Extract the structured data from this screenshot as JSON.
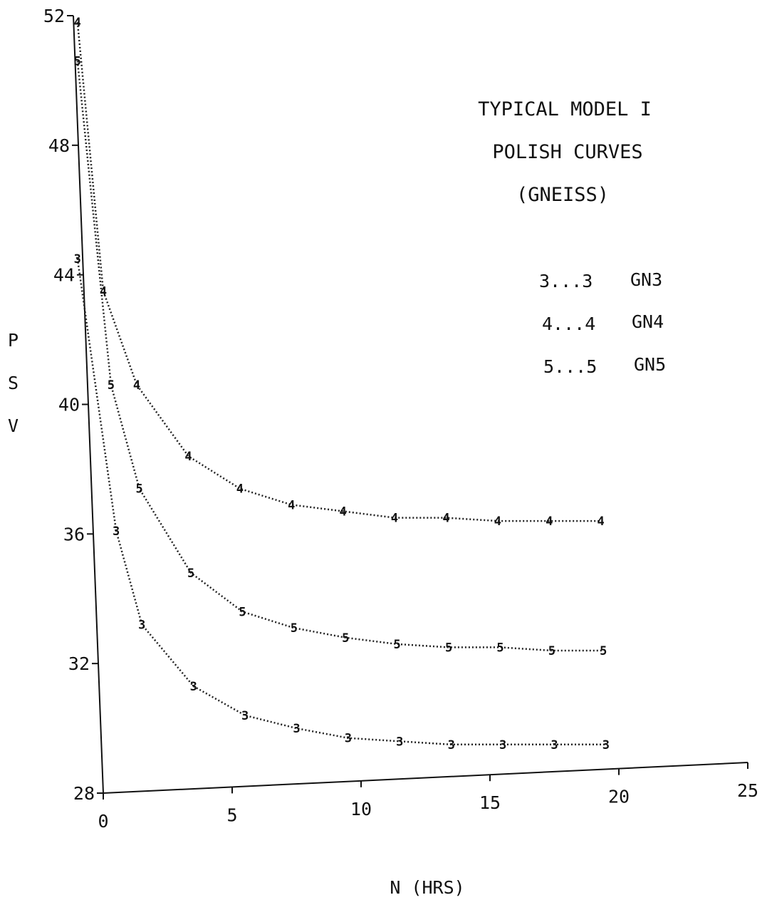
{
  "chart_data": {
    "type": "line",
    "title_lines": [
      "TYPICAL MODEL I",
      "POLISH CURVES",
      "(GNEISS)"
    ],
    "xlabel": "N (HRS)",
    "ylabel_chars": [
      "P",
      "S",
      "V"
    ],
    "xlim": [
      0,
      25
    ],
    "ylim": [
      28,
      52
    ],
    "x_ticks": [
      "0",
      "5",
      "10",
      "15",
      "20",
      "25"
    ],
    "y_ticks": [
      "28",
      "32",
      "36",
      "40",
      "44",
      "48",
      "52"
    ],
    "legend": [
      {
        "marker": "3",
        "text": "3...3",
        "name": "GN3"
      },
      {
        "marker": "4",
        "text": "4...4",
        "name": "GN4"
      },
      {
        "marker": "5",
        "text": "5...5",
        "name": "GN5"
      }
    ],
    "series": [
      {
        "name": "GN3",
        "marker": "3",
        "x": [
          -1,
          0.5,
          1.5,
          3.5,
          5.5,
          7.5,
          9.5,
          11.5,
          13.5,
          15.5,
          17.5,
          19.5
        ],
        "y": [
          44.5,
          36.1,
          33.2,
          31.3,
          30.4,
          30.0,
          29.7,
          29.6,
          29.5,
          29.5,
          29.5,
          29.5
        ]
      },
      {
        "name": "GN4",
        "marker": "4",
        "x": [
          -1,
          0,
          1.3,
          3.3,
          5.3,
          7.3,
          9.3,
          11.3,
          13.3,
          15.3,
          17.3,
          19.3
        ],
        "y": [
          51.8,
          43.5,
          40.6,
          38.4,
          37.4,
          36.9,
          36.7,
          36.5,
          36.5,
          36.4,
          36.4,
          36.4
        ]
      },
      {
        "name": "GN5",
        "marker": "5",
        "x": [
          -1,
          0.3,
          1.4,
          3.4,
          5.4,
          7.4,
          9.4,
          11.4,
          13.4,
          15.4,
          17.4,
          19.4
        ],
        "y": [
          50.6,
          40.6,
          37.4,
          34.8,
          33.6,
          33.1,
          32.8,
          32.6,
          32.5,
          32.5,
          32.4,
          32.4
        ]
      }
    ]
  }
}
